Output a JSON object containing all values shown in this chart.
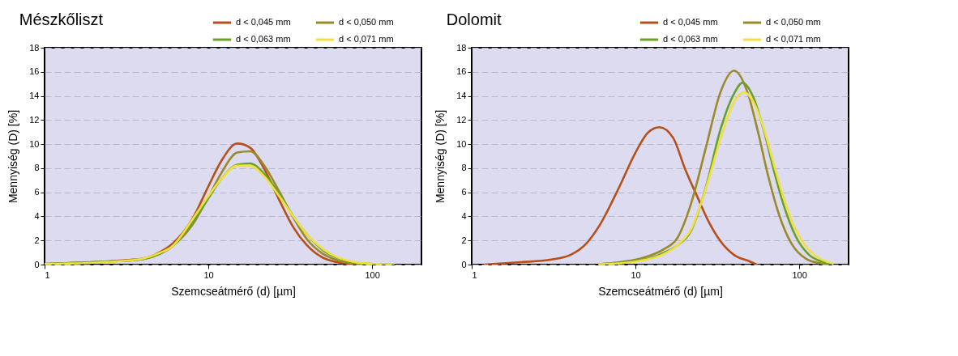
{
  "chart_data": [
    {
      "type": "line",
      "title": "Mészkőliszt",
      "xlabel": "Szemcseátmérő (d) [µm]",
      "ylabel": "Mennyiség (D) [%]",
      "log": "x",
      "xlim": [
        1,
        200
      ],
      "xticks": [
        1,
        10,
        100
      ],
      "ylim": [
        0,
        18
      ],
      "yticks": [
        0,
        2,
        4,
        6,
        8,
        10,
        12,
        14,
        16,
        18
      ],
      "grid": "y",
      "legend": "top right",
      "series": [
        {
          "name": "d < 0,045 mm",
          "color": "#b5501c",
          "x": [
            1,
            2,
            3,
            4,
            5,
            6,
            8,
            10,
            12,
            15,
            18,
            22,
            27,
            33,
            40,
            50,
            60,
            75,
            90,
            100
          ],
          "values": [
            0.05,
            0.2,
            0.35,
            0.5,
            1.0,
            1.7,
            3.8,
            6.5,
            8.6,
            10.05,
            9.7,
            7.9,
            5.4,
            3.1,
            1.6,
            0.57,
            0.22,
            0.05,
            0.01,
            0
          ]
        },
        {
          "name": "d < 0,050 mm",
          "color": "#9a8a2a",
          "x": [
            1,
            2,
            3,
            4,
            5,
            6,
            8,
            10,
            12,
            15,
            18,
            22,
            27,
            33,
            40,
            50,
            60,
            75,
            90,
            110,
            120
          ],
          "values": [
            0.05,
            0.2,
            0.3,
            0.45,
            0.9,
            1.5,
            3.3,
            5.6,
            7.6,
            9.3,
            9.4,
            8.2,
            6.1,
            3.9,
            2.1,
            0.9,
            0.4,
            0.12,
            0.04,
            0.01,
            0
          ]
        },
        {
          "name": "d < 0,063 mm",
          "color": "#6aa02a",
          "x": [
            1,
            2,
            3,
            4,
            5,
            6,
            8,
            10,
            12,
            15,
            18,
            22,
            27,
            33,
            40,
            50,
            60,
            75,
            90,
            110,
            135
          ],
          "values": [
            0.05,
            0.2,
            0.3,
            0.45,
            0.85,
            1.5,
            3.5,
            5.5,
            7.1,
            8.3,
            8.4,
            7.5,
            5.9,
            4.0,
            2.5,
            1.2,
            0.6,
            0.22,
            0.09,
            0.03,
            0
          ]
        },
        {
          "name": "d < 0,071 mm",
          "color": "#f0e040",
          "x": [
            1,
            2,
            3,
            4,
            5,
            6,
            8,
            10,
            12,
            15,
            18,
            22,
            27,
            33,
            40,
            50,
            60,
            75,
            90,
            110,
            135
          ],
          "values": [
            0.05,
            0.15,
            0.3,
            0.5,
            0.95,
            1.5,
            3.75,
            5.7,
            7.1,
            8.2,
            8.2,
            7.3,
            5.7,
            4.0,
            2.5,
            1.3,
            0.66,
            0.26,
            0.11,
            0.04,
            0
          ]
        }
      ]
    },
    {
      "type": "line",
      "title": "Dolomit",
      "xlabel": "Szemcseátmérő (d) [µm]",
      "ylabel": "Mennyiség (D) [%]",
      "log": "x",
      "xlim": [
        1,
        200
      ],
      "xticks": [
        1,
        10,
        100
      ],
      "ylim": [
        0,
        18
      ],
      "yticks": [
        0,
        2,
        4,
        6,
        8,
        10,
        12,
        14,
        16,
        18
      ],
      "grid": "y",
      "legend": "top right",
      "series": [
        {
          "name": "d < 0,045 mm",
          "color": "#b5501c",
          "x": [
            1.2,
            2,
            3,
            4,
            5,
            6,
            8,
            10,
            12,
            14,
            17,
            20,
            24,
            28,
            33,
            40,
            50,
            55
          ],
          "values": [
            0,
            0.2,
            0.4,
            0.8,
            1.74,
            3.2,
            6.5,
            9.3,
            11.0,
            11.4,
            10.5,
            8.0,
            5.55,
            3.55,
            1.95,
            0.8,
            0.25,
            0
          ]
        },
        {
          "name": "d < 0,050 mm",
          "color": "#9a8a2a",
          "x": [
            6,
            8,
            10,
            12,
            15,
            18,
            22,
            27,
            33,
            40,
            48,
            56,
            65,
            75,
            90,
            110,
            135,
            150
          ],
          "values": [
            0.03,
            0.2,
            0.4,
            0.7,
            1.3,
            2.2,
            5.2,
            9.8,
            14.3,
            16.1,
            14.4,
            11.0,
            7.2,
            4.2,
            1.7,
            0.48,
            0.1,
            0
          ]
        },
        {
          "name": "d < 0,063 mm",
          "color": "#6aa02a",
          "x": [
            6,
            8,
            10,
            12,
            15,
            18,
            22,
            27,
            33,
            40,
            45,
            52,
            60,
            70,
            80,
            95,
            115,
            140,
            160
          ],
          "values": [
            0.03,
            0.15,
            0.3,
            0.5,
            1.0,
            1.6,
            2.9,
            6.5,
            11.2,
            14.2,
            15.1,
            14.0,
            11.4,
            7.8,
            5.0,
            2.35,
            0.8,
            0.21,
            0
          ]
        },
        {
          "name": "d < 0,071 mm",
          "color": "#f0e040",
          "x": [
            6,
            8,
            10,
            12,
            15,
            18,
            22,
            27,
            33,
            40,
            46,
            52,
            60,
            70,
            80,
            95,
            115,
            140,
            160
          ],
          "values": [
            0.03,
            0.1,
            0.25,
            0.45,
            0.9,
            1.6,
            3.0,
            6.4,
            10.4,
            13.5,
            14.3,
            13.6,
            11.5,
            8.3,
            5.6,
            2.9,
            1.2,
            0.36,
            0.1
          ]
        }
      ]
    }
  ]
}
